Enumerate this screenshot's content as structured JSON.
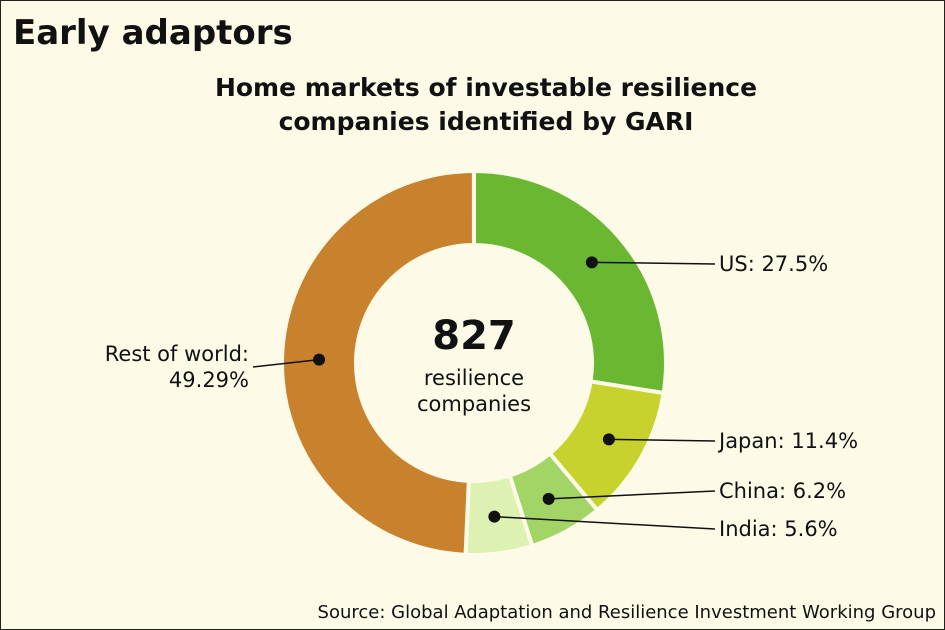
{
  "header": {
    "title": "Early adaptors"
  },
  "chart_data": {
    "type": "donut",
    "title": "Home markets of investable resilience companies identified by GARI",
    "values": [
      27.5,
      11.4,
      6.2,
      5.6,
      49.29
    ],
    "value_labels": [
      "US: 27.5%",
      "Japan: 11.4%",
      "China: 6.2%",
      "India: 5.6%",
      "Rest of world: 49.29%"
    ],
    "colors": [
      "#6ab832",
      "#c8d22e",
      "#a3d466",
      "#ddf1b2",
      "#c8822e"
    ],
    "center_value": 827,
    "center_label": "resilience companies"
  },
  "footer": {
    "source": "Source: Global Adaptation and Resilience Investment Working Group"
  }
}
